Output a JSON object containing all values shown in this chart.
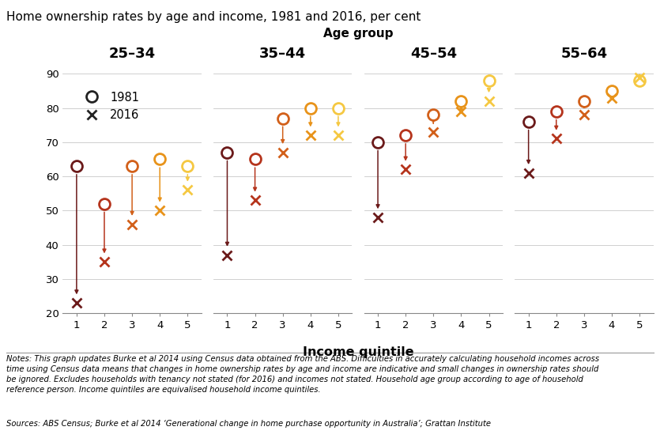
{
  "title": "Home ownership rates by age and income, 1981 and 2016, per cent",
  "age_groups": [
    "25–34",
    "35–44",
    "45–54",
    "55–64"
  ],
  "age_keys": [
    "25-34",
    "35-44",
    "45-54",
    "55-64"
  ],
  "income_quintiles": [
    1,
    2,
    3,
    4,
    5
  ],
  "age_group_label": "Age group",
  "xlabel": "Income quintile",
  "ylim": [
    20,
    93
  ],
  "yticks": [
    20,
    30,
    40,
    50,
    60,
    70,
    80,
    90
  ],
  "colors_by_quintile": [
    "#6B1A1A",
    "#B5341C",
    "#D2601A",
    "#E8931A",
    "#F5C842"
  ],
  "data_1981": {
    "25-34": [
      63,
      52,
      63,
      65,
      63
    ],
    "35-44": [
      67,
      65,
      77,
      80,
      80
    ],
    "45-54": [
      70,
      72,
      78,
      82,
      88
    ],
    "55-64": [
      76,
      79,
      82,
      85,
      88
    ]
  },
  "data_2016": {
    "25-34": [
      23,
      35,
      46,
      50,
      56
    ],
    "35-44": [
      37,
      53,
      67,
      72,
      72
    ],
    "45-54": [
      48,
      62,
      73,
      79,
      82
    ],
    "55-64": [
      61,
      71,
      78,
      83,
      89
    ]
  },
  "notes_line1": "Notes: This graph updates Burke et al 2014 using Census data obtained from the ABS. Difficulties in accurately calculating household incomes across",
  "notes_line2": "time using Census data means that changes in home ownership rates by age and income are indicative and small changes in ownership rates should",
  "notes_line3": "be ignored. Excludes households with tenancy not stated (for 2016) and incomes not stated. Household age group according to age of household",
  "notes_line4": "reference person. Income quintiles are equivalised household income quintiles.",
  "sources": "Sources: ABS Census; Burke et al 2014 ‘Generational change in home purchase opportunity in Australia’; Grattan Institute"
}
